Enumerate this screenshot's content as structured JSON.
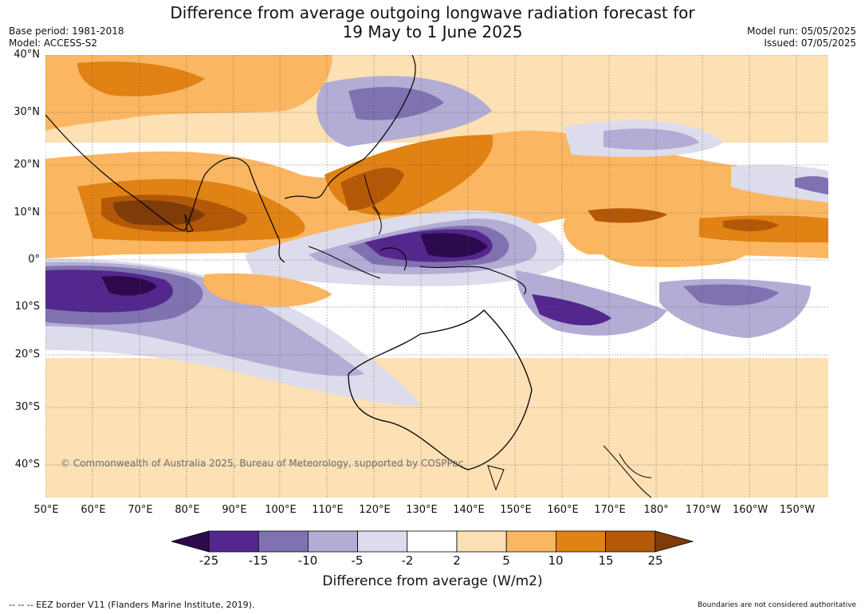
{
  "title_line1": "Difference from average outgoing longwave radiation forecast for",
  "title_line2": "19 May to 1 June 2025",
  "base_period": "Base period: 1981-2018",
  "model": "Model: ACCESS-S2",
  "model_run": "Model run: 05/05/2025",
  "issued": "Issued: 07/05/2025",
  "lat_labels": [
    "40°N",
    "30°N",
    "20°N",
    "10°N",
    "0°",
    "10°S",
    "20°S",
    "30°S",
    "40°S"
  ],
  "lon_labels": [
    "50°E",
    "60°E",
    "70°E",
    "80°E",
    "90°E",
    "100°E",
    "110°E",
    "120°E",
    "130°E",
    "140°E",
    "150°E",
    "160°E",
    "170°E",
    "180°",
    "170°W",
    "160°W",
    "150°W"
  ],
  "copyright": "© Commonwealth of Australia 2025, Bureau of Meteorology, supported by COSPPac",
  "colorbar": {
    "title": "Difference from average (W/m2)",
    "tick_labels": [
      "-25",
      "-15",
      "-10",
      "-5",
      "-2",
      "2",
      "5",
      "10",
      "15",
      "25"
    ],
    "colors": [
      "#2d0a4e",
      "#54278f",
      "#8072b0",
      "#b3acd4",
      "#dcdcec",
      "#ffffff",
      "#fde0b4",
      "#fbb661",
      "#e08214",
      "#b35806",
      "#7f3b08"
    ]
  },
  "eez_note": "--  --  -- EEZ border V11 (Flanders Marine Institute, 2019).",
  "boundaries_note": "Boundaries are not considered authoritative"
}
